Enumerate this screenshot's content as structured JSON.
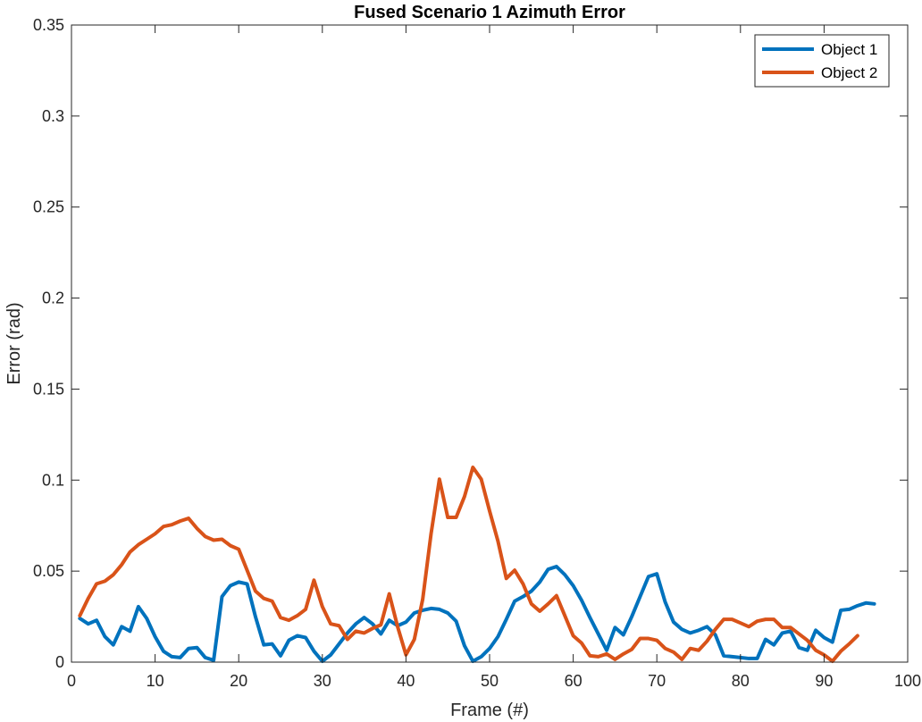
{
  "chart_data": {
    "type": "line",
    "title": "Fused Scenario 1 Azimuth Error",
    "xlabel": "Frame (#)",
    "ylabel": "Error (rad)",
    "xlim": [
      0,
      100
    ],
    "ylim": [
      0,
      0.35
    ],
    "xticks": [
      0,
      10,
      20,
      30,
      40,
      50,
      60,
      70,
      80,
      90,
      100
    ],
    "yticks": [
      0,
      0.05,
      0.1,
      0.15,
      0.2,
      0.25,
      0.3,
      0.35
    ],
    "xtick_labels": [
      "0",
      "10",
      "20",
      "30",
      "40",
      "50",
      "60",
      "70",
      "80",
      "90",
      "100"
    ],
    "ytick_labels": [
      "0",
      "0.05",
      "0.1",
      "0.15",
      "0.2",
      "0.25",
      "0.3",
      "0.35"
    ],
    "grid": false,
    "legend_position": "top-right",
    "series": [
      {
        "name": "Object 1",
        "color": "#0072BD",
        "x": [
          1,
          2,
          3,
          4,
          5,
          6,
          7,
          8,
          9,
          10,
          11,
          12,
          13,
          14,
          15,
          16,
          17,
          18,
          19,
          20,
          21,
          22,
          23,
          24,
          25,
          26,
          27,
          28,
          29,
          30,
          31,
          32,
          33,
          34,
          35,
          36,
          37,
          38,
          39,
          40,
          41,
          42,
          43,
          44,
          45,
          46,
          47,
          48,
          49,
          50,
          51,
          52,
          53,
          54,
          55,
          56,
          57,
          58,
          59,
          60,
          61,
          62,
          63,
          64,
          65,
          66,
          67,
          68,
          69,
          70,
          71,
          72,
          73,
          74,
          75,
          76,
          77,
          78,
          79,
          80,
          81,
          82,
          83,
          84,
          85,
          86,
          87,
          88,
          89,
          90,
          91,
          92,
          93,
          94,
          95,
          96
        ],
        "y": [
          0.024,
          0.021,
          0.023,
          0.014,
          0.0095,
          0.0195,
          0.017,
          0.0305,
          0.024,
          0.014,
          0.006,
          0.003,
          0.0025,
          0.0075,
          0.008,
          0.0025,
          0.001,
          0.036,
          0.042,
          0.044,
          0.043,
          0.025,
          0.0095,
          0.01,
          0.0035,
          0.012,
          0.0145,
          0.0135,
          0.006,
          0.0005,
          0.004,
          0.01,
          0.016,
          0.021,
          0.0245,
          0.021,
          0.0155,
          0.023,
          0.02,
          0.022,
          0.027,
          0.0285,
          0.0295,
          0.029,
          0.027,
          0.0225,
          0.009,
          0.0005,
          0.003,
          0.0075,
          0.014,
          0.0235,
          0.0335,
          0.036,
          0.039,
          0.044,
          0.051,
          0.0525,
          0.048,
          0.042,
          0.034,
          0.0245,
          0.0155,
          0.0065,
          0.019,
          0.015,
          0.025,
          0.036,
          0.047,
          0.0485,
          0.033,
          0.022,
          0.018,
          0.016,
          0.0175,
          0.0195,
          0.015,
          0.0035,
          0.003,
          0.0025,
          0.002,
          0.002,
          0.0125,
          0.0095,
          0.016,
          0.017,
          0.008,
          0.0065,
          0.0175,
          0.0135,
          0.011,
          0.0285,
          0.029,
          0.031,
          0.0325,
          0.032
        ]
      },
      {
        "name": "Object 2",
        "color": "#D95319",
        "x": [
          1,
          2,
          3,
          4,
          5,
          6,
          7,
          8,
          9,
          10,
          11,
          12,
          13,
          14,
          15,
          16,
          17,
          18,
          19,
          20,
          21,
          22,
          23,
          24,
          25,
          26,
          27,
          28,
          29,
          30,
          31,
          32,
          33,
          34,
          35,
          36,
          37,
          38,
          39,
          40,
          41,
          42,
          43,
          44,
          45,
          46,
          47,
          48,
          49,
          50,
          51,
          52,
          53,
          54,
          55,
          56,
          57,
          58,
          59,
          60,
          61,
          62,
          63,
          64,
          65,
          66,
          67,
          68,
          69,
          70,
          71,
          72,
          73,
          74,
          75,
          76,
          77,
          78,
          79,
          80,
          81,
          82,
          83,
          84,
          85,
          86,
          87,
          88,
          89,
          90,
          91,
          92,
          93,
          94
        ],
        "y": [
          0.0255,
          0.035,
          0.043,
          0.0445,
          0.048,
          0.0535,
          0.0605,
          0.0645,
          0.0675,
          0.0705,
          0.0745,
          0.0755,
          0.0775,
          0.079,
          0.0735,
          0.069,
          0.067,
          0.0675,
          0.064,
          0.062,
          0.0505,
          0.039,
          0.035,
          0.0335,
          0.0245,
          0.023,
          0.0255,
          0.029,
          0.045,
          0.0305,
          0.021,
          0.02,
          0.0125,
          0.017,
          0.016,
          0.0185,
          0.0205,
          0.0375,
          0.0195,
          0.004,
          0.0125,
          0.0345,
          0.0705,
          0.1005,
          0.0795,
          0.0795,
          0.091,
          0.107,
          0.1005,
          0.083,
          0.0665,
          0.046,
          0.0505,
          0.043,
          0.032,
          0.028,
          0.032,
          0.0365,
          0.0255,
          0.0145,
          0.0105,
          0.0035,
          0.003,
          0.0045,
          0.0015,
          0.0045,
          0.007,
          0.013,
          0.013,
          0.012,
          0.0075,
          0.0055,
          0.0015,
          0.0075,
          0.0065,
          0.0115,
          0.018,
          0.0235,
          0.0235,
          0.0215,
          0.0195,
          0.0225,
          0.0235,
          0.0235,
          0.019,
          0.019,
          0.0155,
          0.012,
          0.0065,
          0.004,
          0.0005,
          0.006,
          0.01,
          0.0145
        ]
      }
    ]
  }
}
